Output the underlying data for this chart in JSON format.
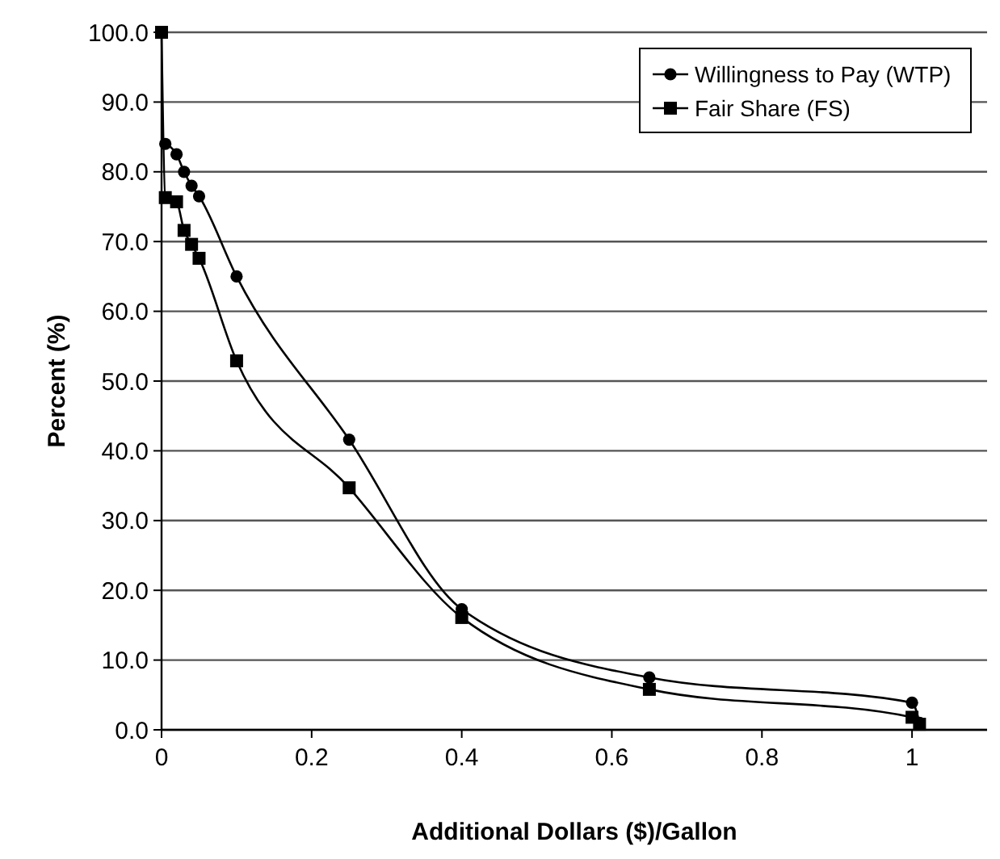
{
  "chart_data": {
    "type": "line",
    "xlabel": "Additional Dollars ($)/Gallon",
    "ylabel": "Percent (%)",
    "xlim": [
      0,
      1.1
    ],
    "xticks": [
      0,
      0.2,
      0.4,
      0.6,
      0.8,
      1
    ],
    "ylim": [
      0,
      100
    ],
    "yticks": [
      {
        "value": 0,
        "label": "0.0"
      },
      {
        "value": 10,
        "label": "10.0"
      },
      {
        "value": 20,
        "label": "20.0"
      },
      {
        "value": 30,
        "label": "30.0"
      },
      {
        "value": 40,
        "label": "40.0"
      },
      {
        "value": 50,
        "label": "50.0"
      },
      {
        "value": 60,
        "label": "60.0"
      },
      {
        "value": 70,
        "label": "70.0"
      },
      {
        "value": 80,
        "label": "80.0"
      },
      {
        "value": 90,
        "label": "90.0"
      },
      {
        "value": 100,
        "label": "100.0"
      }
    ],
    "grid": "y",
    "legend": "top right",
    "series": [
      {
        "name": "Willingness to Pay (WTP)",
        "color": "#000000",
        "marker": "circle",
        "x": [
          0.005,
          0.02,
          0.03,
          0.04,
          0.05,
          0.1,
          0.25,
          0.4,
          0.65,
          1.0,
          1.01
        ],
        "values": [
          84,
          82.5,
          80,
          78,
          76.5,
          65,
          41.6,
          17.3,
          7.5,
          3.9,
          1.0
        ]
      },
      {
        "name": "Fair Share (FS)",
        "color": "#000000",
        "marker": "square",
        "x": [
          0,
          0.005,
          0.02,
          0.03,
          0.04,
          0.05,
          0.1,
          0.25,
          0.4,
          0.65,
          1.0,
          1.01
        ],
        "values": [
          100,
          76.3,
          75.7,
          71.6,
          69.6,
          67.6,
          52.9,
          34.7,
          16.1,
          5.8,
          1.8,
          0.8
        ]
      }
    ]
  }
}
